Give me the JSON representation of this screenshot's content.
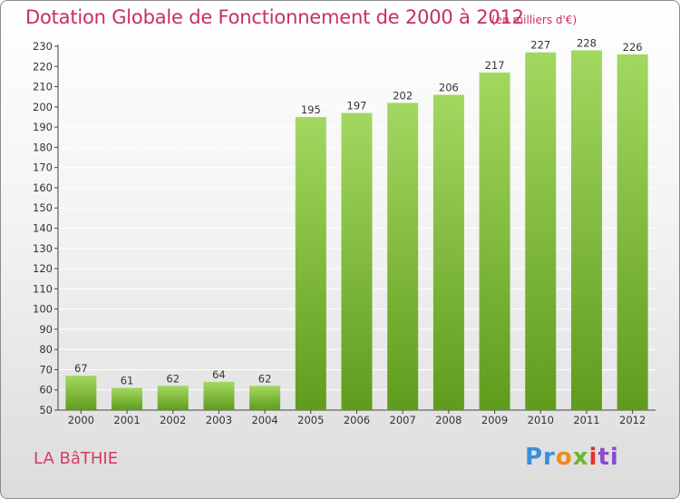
{
  "header": {
    "title": "Dotation Globale de Fonctionnement de 2000 à 2012",
    "unit": "(en milliers d'€)"
  },
  "footer": {
    "town": "LA BâTHIE",
    "logo": [
      "Pr",
      "o",
      "x",
      "i",
      "ti"
    ]
  },
  "colors": {
    "title": "#c8305a",
    "bar_light": "#9ed45a",
    "bar_dark": "#5e9a1a"
  },
  "chart_data": {
    "type": "bar",
    "title": "Dotation Globale de Fonctionnement de 2000 à 2012",
    "subtitle": "(en milliers d'€)",
    "categories": [
      "2000",
      "2001",
      "2002",
      "2003",
      "2004",
      "2005",
      "2006",
      "2007",
      "2008",
      "2009",
      "2010",
      "2011",
      "2012"
    ],
    "values": [
      67,
      61,
      62,
      64,
      62,
      195,
      197,
      202,
      206,
      217,
      227,
      228,
      226
    ],
    "ylim": [
      50,
      230
    ],
    "yticks": [
      50,
      60,
      70,
      80,
      90,
      100,
      110,
      120,
      130,
      140,
      150,
      160,
      170,
      180,
      190,
      200,
      210,
      220,
      230
    ],
    "grid": true,
    "xlabel": "",
    "ylabel": ""
  }
}
